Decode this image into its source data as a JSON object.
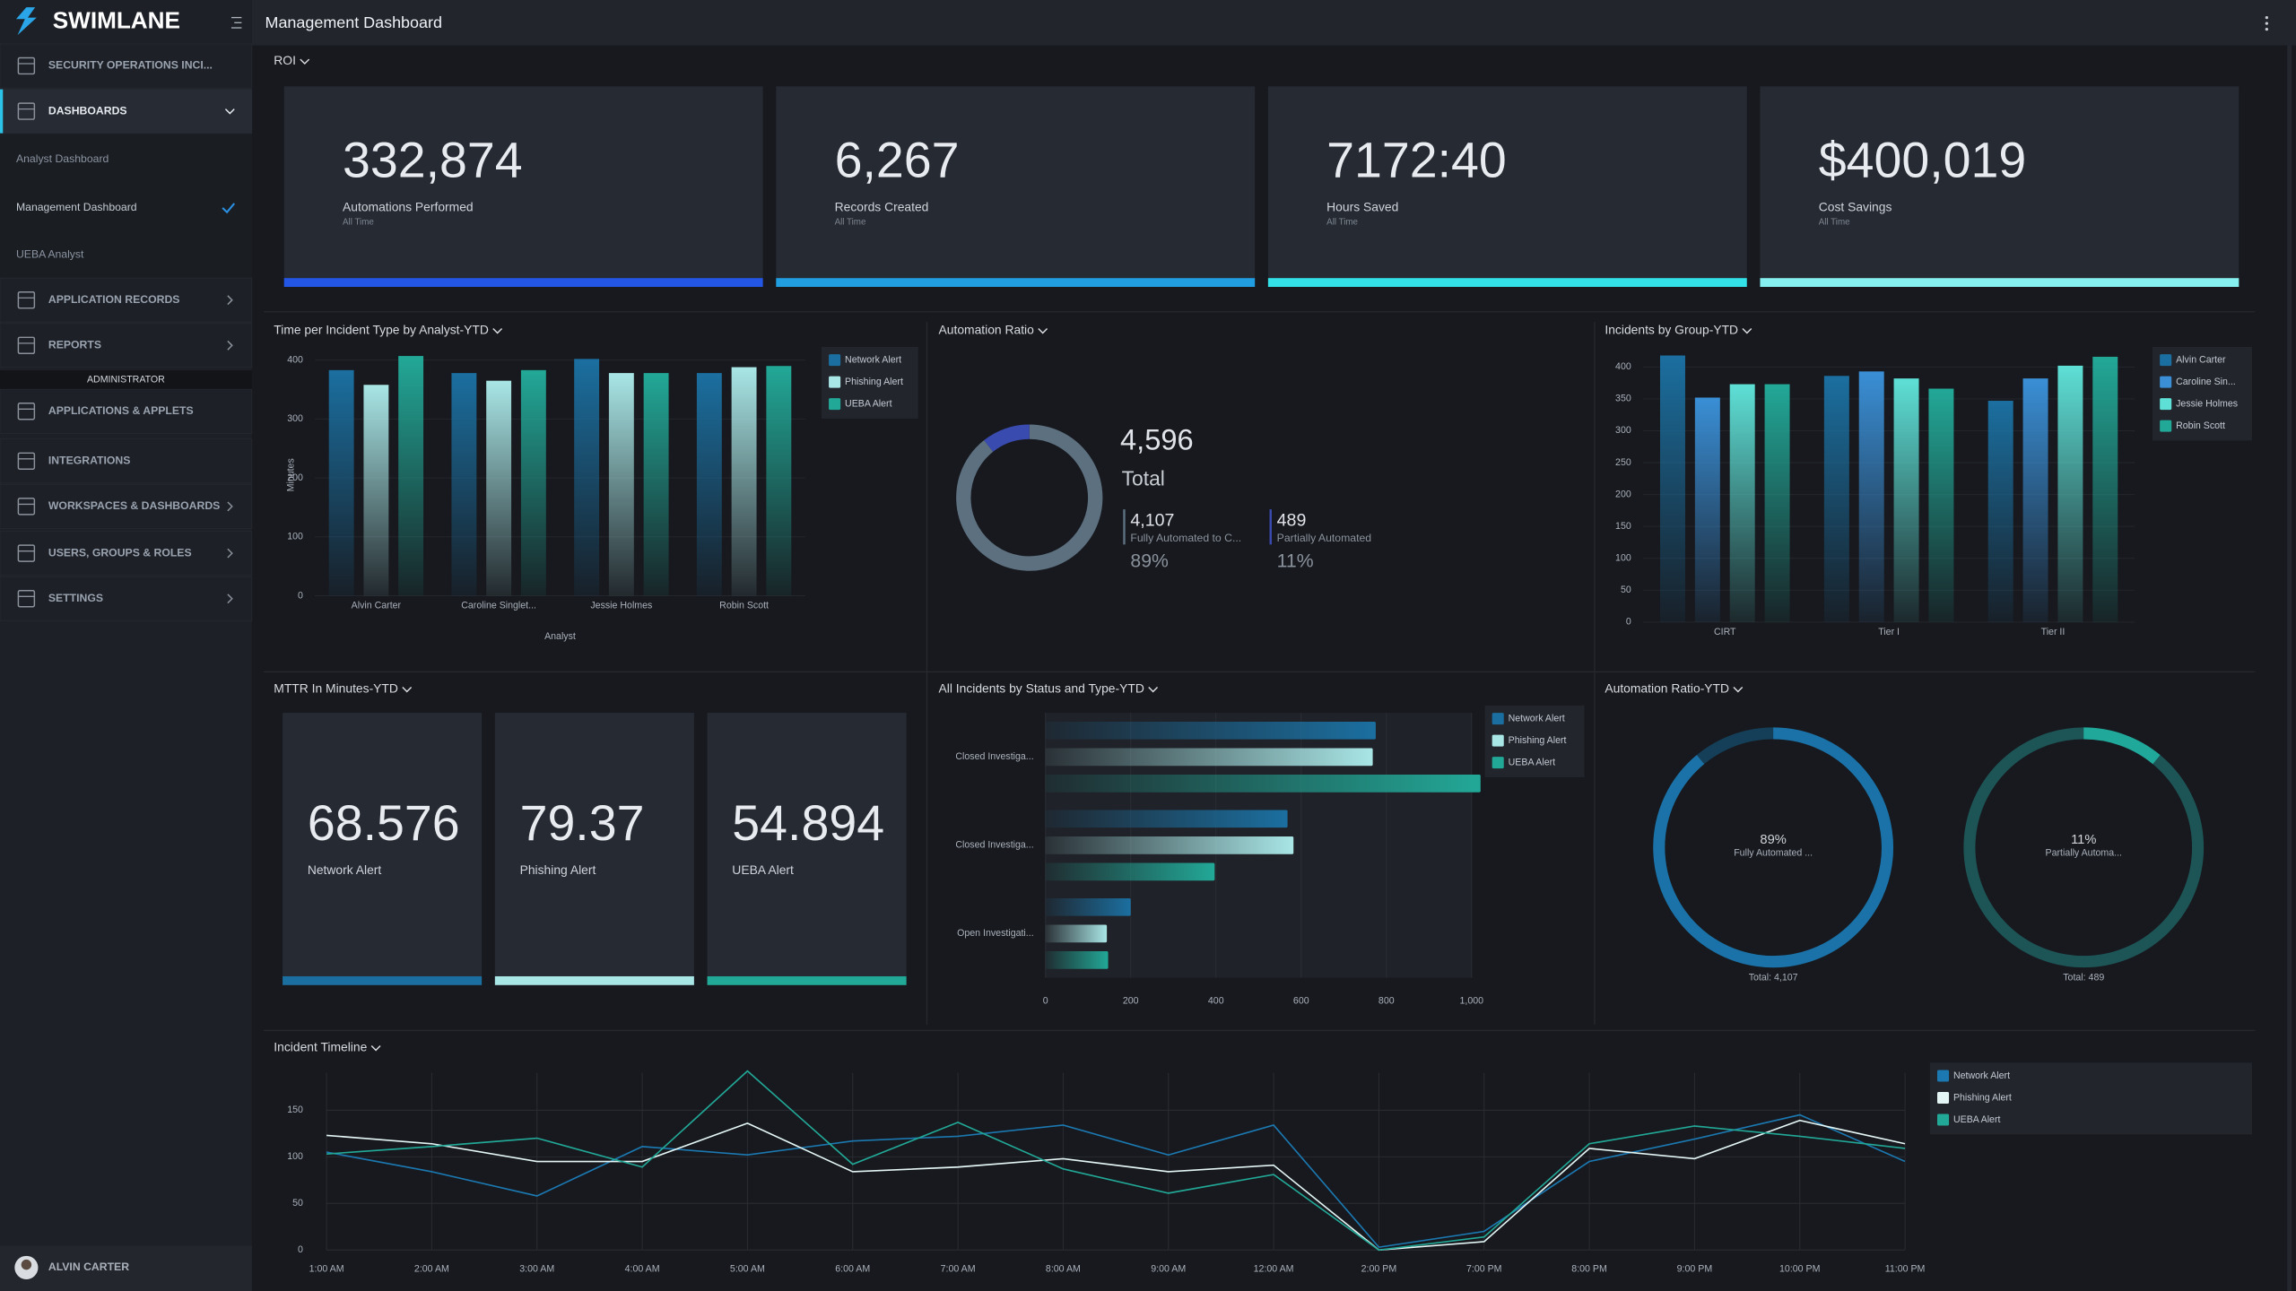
{
  "header": {
    "title": "Management Dashboard"
  },
  "sidebar": {
    "brand": "SWIMLANE",
    "nav": [
      "SECURITY OPERATIONS INCI...",
      "DASHBOARDS"
    ],
    "dashboards": [
      "Analyst Dashboard",
      "Management Dashboard",
      "UEBA Analyst"
    ],
    "nav2": [
      "APPLICATION RECORDS",
      "REPORTS"
    ],
    "admin_title": "ADMINISTRATOR",
    "admin_nav": [
      "APPLICATIONS & APPLETS",
      "INTEGRATIONS",
      "WORKSPACES & DASHBOARDS",
      "USERS, GROUPS & ROLES",
      "SETTINGS"
    ],
    "user": "ALVIN CARTER"
  },
  "roi": {
    "title": "ROI",
    "cards": [
      {
        "value": "332,874",
        "label": "Automations Performed",
        "period": "All Time",
        "color": "#2456e6"
      },
      {
        "value": "6,267",
        "label": "Records Created",
        "period": "All Time",
        "color": "#219de2"
      },
      {
        "value": "7172:40",
        "label": "Hours Saved",
        "period": "All Time",
        "color": "#33e1e8"
      },
      {
        "value": "$400,019",
        "label": "Cost Savings",
        "period": "All Time",
        "color": "#86f0f0"
      }
    ]
  },
  "mttr": {
    "title": "MTTR In Minutes-YTD",
    "cards": [
      {
        "value": "68.576",
        "label": "Network Alert",
        "color": "#1b6fa0"
      },
      {
        "value": "79.37",
        "label": "Phishing Alert",
        "color": "#a9e6e6"
      },
      {
        "value": "54.894",
        "label": "UEBA Alert",
        "color": "#22a897"
      }
    ]
  },
  "chart_data": [
    {
      "type": "bar",
      "title": "Time per Incident Type by Analyst-YTD",
      "x_label": "Analyst",
      "y_label": "Minutes",
      "categories": [
        "Alvin Carter",
        "Caroline Singlet...",
        "Jessie Holmes",
        "Robin Scott"
      ],
      "series": [
        {
          "name": "Network Alert",
          "color": "#1b6fa0",
          "values": [
            383,
            378,
            402,
            378
          ]
        },
        {
          "name": "Phishing Alert",
          "color": "#a9e6e6",
          "values": [
            358,
            365,
            378,
            388
          ]
        },
        {
          "name": "UEBA Alert",
          "color": "#22a897",
          "values": [
            407,
            383,
            378,
            390
          ]
        }
      ],
      "ylim": [
        0,
        410
      ],
      "yticks": [
        0,
        100,
        200,
        300,
        400
      ],
      "grid": true,
      "legend": "right"
    },
    {
      "type": "donut",
      "title": "Automation Ratio",
      "center_value": "4,596",
      "center_label": "Total",
      "categories": [
        "Fully Automated to C...",
        "Partially Automated"
      ],
      "values": [
        4107,
        489
      ],
      "value_labels": [
        "4,107",
        "489"
      ],
      "percent_labels": [
        "89%",
        "11%"
      ],
      "colors": [
        "#5d7080",
        "#3a4bb0"
      ]
    },
    {
      "type": "bar",
      "title": "Incidents by Group-YTD",
      "categories": [
        "CIRT",
        "Tier I",
        "Tier II"
      ],
      "series": [
        {
          "name": "Alvin Carter",
          "color": "#1b6fa0",
          "values": [
            418,
            386,
            347
          ]
        },
        {
          "name": "Caroline Sin...",
          "color": "#3a8fd6",
          "values": [
            352,
            393,
            382
          ]
        },
        {
          "name": "Jessie Holmes",
          "color": "#5ee0d6",
          "values": [
            373,
            382,
            402
          ]
        },
        {
          "name": "Robin Scott",
          "color": "#22a897",
          "values": [
            373,
            366,
            416
          ]
        }
      ],
      "ylim": [
        0,
        420
      ],
      "yticks": [
        0,
        50,
        100,
        150,
        200,
        250,
        300,
        350,
        400
      ],
      "grid": true,
      "legend": "right"
    },
    {
      "type": "barh",
      "title": "All Incidents by Status and Type-YTD",
      "categories": [
        "Closed Investiga...",
        "Closed Investiga...",
        "Open Investigati..."
      ],
      "series": [
        {
          "name": "Network Alert",
          "color": "#1b6fa0",
          "values": [
            775,
            568,
            200
          ]
        },
        {
          "name": "Phishing Alert",
          "color": "#a9e6e6",
          "values": [
            768,
            582,
            144
          ]
        },
        {
          "name": "UEBA Alert",
          "color": "#22a897",
          "values": [
            1021,
            397,
            147
          ]
        }
      ],
      "xlim": [
        0,
        1000
      ],
      "xticks": [
        0,
        200,
        400,
        600,
        800,
        {
          "value": 1000,
          "label": "1,000"
        }
      ],
      "grid": true,
      "legend": "right"
    },
    {
      "type": "gauge",
      "title": "Automation Ratio-YTD",
      "categories": [
        "Fully Automated ...",
        "Partially Automa..."
      ],
      "values": [
        89,
        11
      ],
      "value_labels": [
        "89%",
        "11%"
      ],
      "totals": [
        "Total: 4,107",
        "Total: 489"
      ],
      "colors": [
        "#1a72a8",
        "#20a99a"
      ],
      "track_colors": [
        "#153f58",
        "#1d5557"
      ]
    },
    {
      "type": "line",
      "title": "Incident Timeline",
      "categories": [
        "1:00 AM",
        "2:00 AM",
        "3:00 AM",
        "4:00 AM",
        "5:00 AM",
        "6:00 AM",
        "7:00 AM",
        "8:00 AM",
        "9:00 AM",
        "12:00 AM",
        "2:00 PM",
        "7:00 PM",
        "8:00 PM",
        "9:00 PM",
        "10:00 PM",
        "11:00 PM"
      ],
      "series": [
        {
          "name": "Network Alert",
          "color": "#1b78b0",
          "values": [
            105,
            84,
            58,
            111,
            102,
            117,
            122,
            134,
            102,
            134,
            3,
            20,
            95,
            119,
            145,
            95
          ]
        },
        {
          "name": "Phishing Alert",
          "color": "#e4f6f6",
          "values": [
            123,
            114,
            95,
            95,
            136,
            84,
            89,
            98,
            84,
            91,
            0,
            9,
            109,
            98,
            139,
            114
          ]
        },
        {
          "name": "UEBA Alert",
          "color": "#22a897",
          "values": [
            103,
            111,
            120,
            89,
            192,
            92,
            137,
            87,
            61,
            81,
            0,
            14,
            114,
            133,
            122,
            109
          ]
        }
      ],
      "ylim": [
        0,
        190
      ],
      "yticks": [
        0,
        50,
        100,
        150
      ],
      "grid": true,
      "legend": "right"
    }
  ]
}
